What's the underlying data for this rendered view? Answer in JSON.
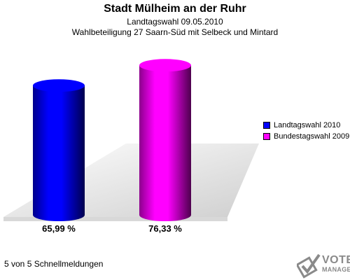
{
  "title": "Stadt Mülheim an der Ruhr",
  "subtitle": "Landtagswahl 09.05.2010",
  "subtitle2": "Wahlbeteiligung 27 Saarn-Süd mit Selbeck und Mintard",
  "footer": "5 von 5 Schnellmeldungen",
  "logo": {
    "line1": "VOTE",
    "line2": "MANAGER",
    "icon": "ballot-check-icon"
  },
  "chart_data": {
    "type": "bar",
    "style": "3d-cylinder",
    "categories": [
      "Landtagswahl 2010",
      "Bundestagswahl 2009"
    ],
    "values": [
      65.99,
      76.33
    ],
    "value_labels": [
      "65,99 %",
      "76,33 %"
    ],
    "colors": [
      "#0000ff",
      "#ff00ff"
    ],
    "ylim": [
      0,
      100
    ],
    "legend_placement": "right",
    "grid": false
  }
}
